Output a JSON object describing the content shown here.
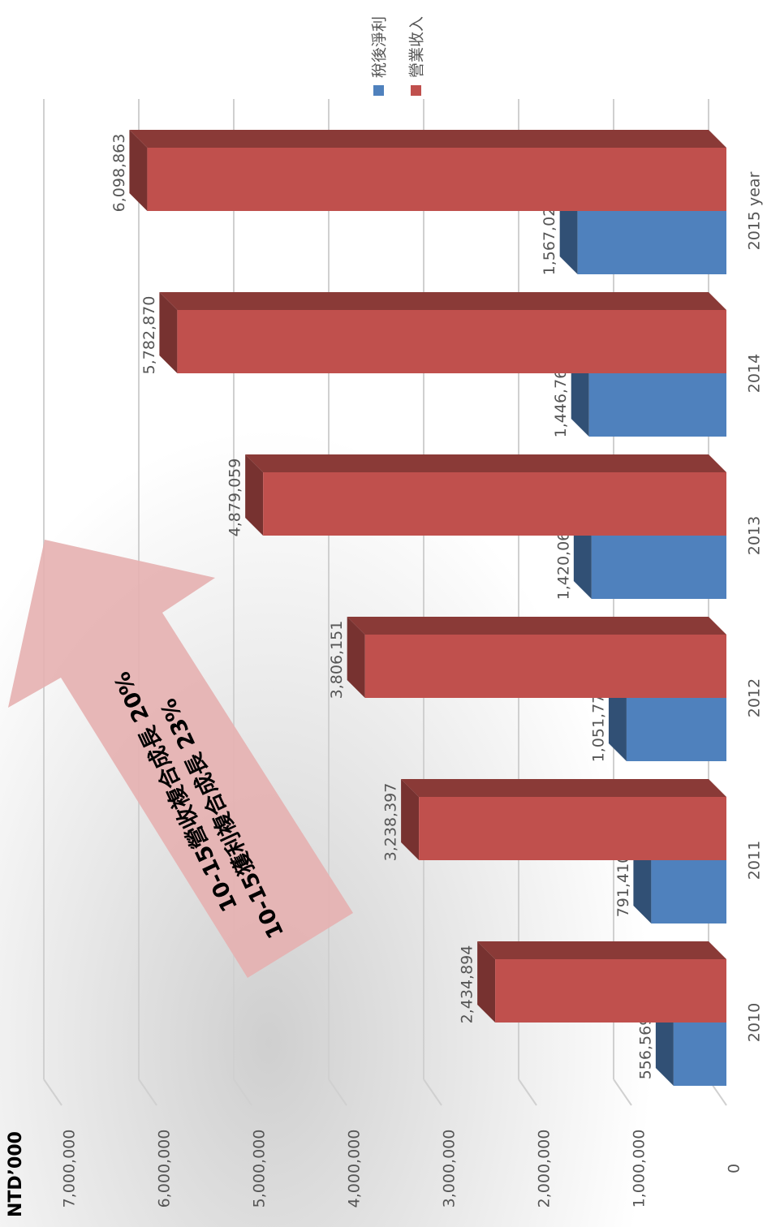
{
  "chart_data": {
    "type": "bar3d",
    "unit_label": "NTD’000",
    "categories": [
      "2010",
      "2011",
      "2012",
      "2013",
      "2014",
      "2015 year"
    ],
    "series": [
      {
        "name": "稅後淨利",
        "color": "#4f81bd",
        "values": [
          556569,
          791410,
          1051770,
          1420062,
          1446767,
          1567021
        ],
        "value_labels": [
          "556,569",
          "791,410",
          "1,051,770",
          "1,420,062",
          "1,446,767",
          "1,567,021"
        ]
      },
      {
        "name": "營業收入",
        "color": "#c0504d",
        "values": [
          2434894,
          3238397,
          3806151,
          4879059,
          5782870,
          6098863
        ],
        "value_labels": [
          "2,434,894",
          "3,238,397",
          "3,806,151",
          "4,879,059",
          "5,782,870",
          "6,098,863"
        ]
      }
    ],
    "ylim": [
      0,
      7000000
    ],
    "yticks": [
      0,
      {
        "value": 1000000,
        "label": "1,000,000"
      },
      {
        "value": 2000000,
        "label": "2,000,000"
      },
      {
        "value": 3000000,
        "label": "3,000,000"
      },
      {
        "value": 4000000,
        "label": "4,000,000"
      },
      {
        "value": 5000000,
        "label": "5,000,000"
      },
      {
        "value": 6000000,
        "label": "6,000,000"
      },
      {
        "value": 7000000,
        "label": "7,000,000"
      }
    ],
    "grid": true,
    "legend": "top-right",
    "annotations": [
      "10-15營收複合成長 20%",
      "10-15獲利複合成長 23%"
    ]
  }
}
